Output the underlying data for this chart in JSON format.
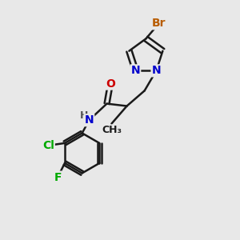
{
  "background_color": "#e8e8e8",
  "bond_color": "#1a1a1a",
  "bond_width": 1.8,
  "atom_colors": {
    "Br": "#b85c00",
    "N": "#0000cc",
    "O": "#cc0000",
    "Cl": "#00aa00",
    "F": "#00aa00",
    "H": "#555555",
    "C": "#1a1a1a"
  },
  "font_size": 10,
  "small_font_size": 9,
  "figsize": [
    3.0,
    3.0
  ],
  "dpi": 100
}
